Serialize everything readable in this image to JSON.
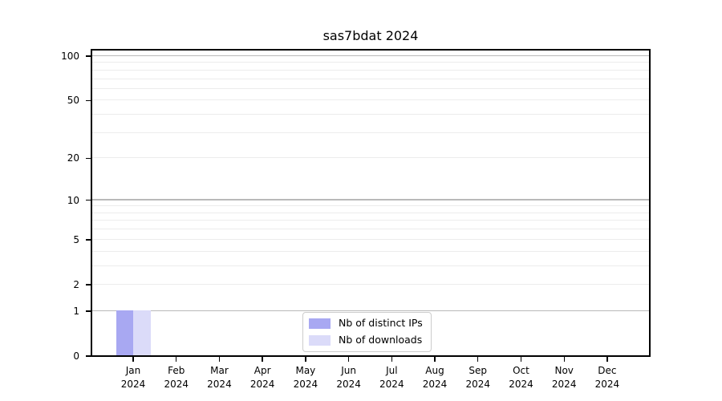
{
  "chart_data": {
    "type": "bar",
    "title": "sas7bdat 2024",
    "categories": [
      "Jan 2024",
      "Feb 2024",
      "Mar 2024",
      "Apr 2024",
      "May 2024",
      "Jun 2024",
      "Jul 2024",
      "Aug 2024",
      "Sep 2024",
      "Oct 2024",
      "Nov 2024",
      "Dec 2024"
    ],
    "series": [
      {
        "name": "Nb of distinct IPs",
        "color": "#a8a8f2",
        "values": [
          1,
          0,
          0,
          0,
          0,
          0,
          0,
          0,
          0,
          0,
          0,
          0
        ]
      },
      {
        "name": "Nb of downloads",
        "color": "#dbdbf9",
        "values": [
          1,
          0,
          0,
          0,
          0,
          0,
          0,
          0,
          0,
          0,
          0,
          0
        ]
      }
    ],
    "x_axis": {
      "tick_labels_two_lines": true
    },
    "y_axis": {
      "scale": "log-like",
      "ticks": [
        0,
        1,
        2,
        5,
        10,
        20,
        50,
        100
      ],
      "major_grid_values": [
        1,
        10,
        100
      ],
      "minor_grid_values": [
        2,
        3,
        4,
        5,
        6,
        7,
        8,
        9,
        20,
        30,
        40,
        50,
        60,
        70,
        80,
        90
      ],
      "ylim": [
        0,
        112
      ]
    },
    "grid": "horizontal",
    "legend": {
      "location": "lower center",
      "entries": [
        "Nb of distinct IPs",
        "Nb of downloads"
      ]
    },
    "colors": {
      "background": "#ffffff",
      "grid_major": "#b9b9b9",
      "grid_minor": "#ececec",
      "spine": "#000000",
      "legend_border": "#cccccc",
      "text": "#000000"
    }
  }
}
